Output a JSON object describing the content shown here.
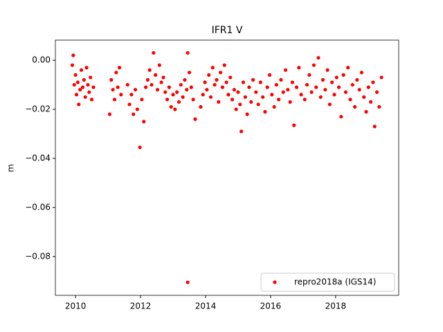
{
  "chart_data": {
    "type": "scatter",
    "title": "IFR1 V",
    "y_label": "m",
    "x": [
      2009.9,
      2009.93,
      2009.96,
      2010.0,
      2010.03,
      2010.07,
      2010.1,
      2010.14,
      2010.18,
      2010.22,
      2010.26,
      2010.3,
      2010.34,
      2010.38,
      2010.42,
      2010.46,
      2010.5,
      2010.55,
      2011.05,
      2011.1,
      2011.15,
      2011.2,
      2011.25,
      2011.3,
      2011.35,
      2011.4,
      2011.6,
      2011.66,
      2011.72,
      2011.78,
      2011.84,
      2011.9,
      2011.98,
      2012.04,
      2012.1,
      2012.16,
      2012.22,
      2012.28,
      2012.34,
      2012.4,
      2012.46,
      2012.52,
      2012.58,
      2012.64,
      2012.7,
      2012.76,
      2012.82,
      2012.88,
      2012.94,
      2013.0,
      2013.06,
      2013.12,
      2013.18,
      2013.24,
      2013.3,
      2013.36,
      2013.42,
      2013.45,
      2013.45,
      2013.5,
      2013.56,
      2013.62,
      2013.68,
      2013.85,
      2013.92,
      2013.98,
      2014.04,
      2014.1,
      2014.16,
      2014.22,
      2014.28,
      2014.34,
      2014.4,
      2014.46,
      2014.52,
      2014.58,
      2014.64,
      2014.7,
      2014.76,
      2014.82,
      2014.88,
      2014.94,
      2015.0,
      2015.06,
      2015.1,
      2015.16,
      2015.22,
      2015.28,
      2015.34,
      2015.4,
      2015.46,
      2015.55,
      2015.62,
      2015.69,
      2015.76,
      2015.83,
      2015.9,
      2015.97,
      2016.04,
      2016.11,
      2016.18,
      2016.25,
      2016.32,
      2016.39,
      2016.46,
      2016.53,
      2016.6,
      2016.67,
      2016.72,
      2016.8,
      2016.87,
      2016.94,
      2017.05,
      2017.12,
      2017.19,
      2017.26,
      2017.33,
      2017.4,
      2017.47,
      2017.54,
      2017.61,
      2017.68,
      2017.75,
      2017.82,
      2017.89,
      2017.96,
      2018.03,
      2018.1,
      2018.17,
      2018.24,
      2018.31,
      2018.38,
      2018.45,
      2018.52,
      2018.59,
      2018.66,
      2018.73,
      2018.8,
      2018.87,
      2018.94,
      2019.01,
      2019.08,
      2019.15,
      2019.2,
      2019.27,
      2019.34,
      2019.41
    ],
    "series": [
      {
        "name": "repro2018a (IGS14)",
        "color": "#ff0000",
        "values": [
          -0.002,
          0.002,
          -0.01,
          -0.006,
          -0.014,
          -0.009,
          -0.018,
          -0.012,
          -0.004,
          -0.011,
          -0.008,
          -0.015,
          -0.003,
          -0.01,
          -0.013,
          -0.007,
          -0.016,
          -0.011,
          -0.022,
          -0.008,
          -0.012,
          -0.016,
          -0.005,
          -0.011,
          -0.003,
          -0.014,
          -0.01,
          -0.018,
          -0.014,
          -0.022,
          -0.012,
          -0.02,
          -0.0355,
          -0.016,
          -0.025,
          -0.011,
          -0.008,
          -0.004,
          -0.01,
          0.003,
          -0.006,
          -0.012,
          -0.002,
          -0.009,
          -0.007,
          -0.013,
          -0.016,
          -0.011,
          -0.019,
          -0.014,
          -0.02,
          -0.013,
          -0.017,
          -0.01,
          -0.015,
          -0.008,
          -0.012,
          0.003,
          -0.0905,
          -0.005,
          -0.011,
          -0.016,
          -0.024,
          -0.019,
          -0.014,
          -0.009,
          -0.012,
          -0.006,
          -0.015,
          -0.003,
          -0.01,
          -0.008,
          -0.017,
          -0.005,
          -0.011,
          -0.002,
          -0.009,
          -0.014,
          -0.007,
          -0.016,
          -0.012,
          -0.02,
          -0.013,
          -0.018,
          -0.029,
          -0.009,
          -0.015,
          -0.022,
          -0.011,
          -0.017,
          -0.008,
          -0.013,
          -0.018,
          -0.009,
          -0.015,
          -0.021,
          -0.011,
          -0.006,
          -0.014,
          -0.019,
          -0.01,
          -0.016,
          -0.008,
          -0.013,
          -0.004,
          -0.012,
          -0.017,
          -0.009,
          -0.0265,
          -0.011,
          -0.003,
          -0.014,
          -0.016,
          -0.01,
          -0.006,
          -0.013,
          -0.002,
          -0.011,
          0.001,
          -0.015,
          -0.008,
          -0.012,
          -0.004,
          -0.018,
          -0.009,
          -0.014,
          -0.007,
          -0.011,
          -0.023,
          -0.006,
          -0.013,
          -0.003,
          -0.016,
          -0.01,
          -0.019,
          -0.008,
          -0.012,
          -0.005,
          -0.015,
          -0.021,
          -0.011,
          -0.017,
          -0.009,
          -0.027,
          -0.013,
          -0.019,
          -0.007
        ]
      }
    ],
    "xlim": [
      2009.38,
      2019.94
    ],
    "xticks": [
      2010,
      2012,
      2014,
      2016,
      2018
    ],
    "ylim": [
      -0.0958,
      0.0082
    ],
    "yticks": [
      {
        "value": 0,
        "label": "0.00"
      },
      {
        "value": -0.02,
        "label": "−0.02"
      },
      {
        "value": -0.04,
        "label": "−0.04"
      },
      {
        "value": -0.06,
        "label": "−0.06"
      },
      {
        "value": -0.08,
        "label": "−0.08"
      }
    ],
    "legend": "lower right"
  }
}
